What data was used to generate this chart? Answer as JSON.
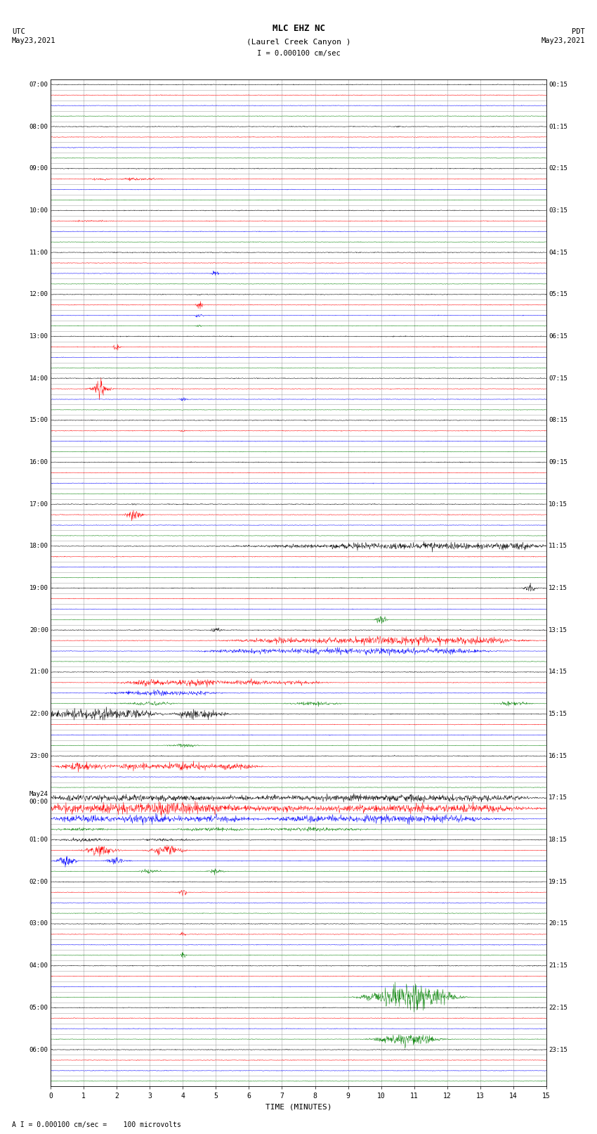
{
  "title_line1": "MLC EHZ NC",
  "title_line2": "(Laurel Creek Canyon )",
  "scale_label": "I = 0.000100 cm/sec",
  "utc_label": "UTC\nMay23,2021",
  "pdt_label": "PDT\nMay23,2021",
  "xlabel": "TIME (MINUTES)",
  "footnote": "A I = 0.000100 cm/sec =    100 microvolts",
  "xlim": [
    0,
    15
  ],
  "xticks": [
    0,
    1,
    2,
    3,
    4,
    5,
    6,
    7,
    8,
    9,
    10,
    11,
    12,
    13,
    14,
    15
  ],
  "n_rows": 96,
  "trace_color_cycle": [
    "black",
    "red",
    "blue",
    "green"
  ],
  "bg_color": "white",
  "grid_color": "#888888",
  "grid_linewidth": 0.4,
  "figure_width": 8.5,
  "figure_height": 16.13,
  "dpi": 100,
  "utc_times": [
    "07:00",
    "",
    "",
    "",
    "08:00",
    "",
    "",
    "",
    "09:00",
    "",
    "",
    "",
    "10:00",
    "",
    "",
    "",
    "11:00",
    "",
    "",
    "",
    "12:00",
    "",
    "",
    "",
    "13:00",
    "",
    "",
    "",
    "14:00",
    "",
    "",
    "",
    "15:00",
    "",
    "",
    "",
    "16:00",
    "",
    "",
    "",
    "17:00",
    "",
    "",
    "",
    "18:00",
    "",
    "",
    "",
    "19:00",
    "",
    "",
    "",
    "20:00",
    "",
    "",
    "",
    "21:00",
    "",
    "",
    "",
    "22:00",
    "",
    "",
    "",
    "23:00",
    "",
    "",
    "",
    "May24\n00:00",
    "",
    "",
    "",
    "01:00",
    "",
    "",
    "",
    "02:00",
    "",
    "",
    "",
    "03:00",
    "",
    "",
    "",
    "04:00",
    "",
    "",
    "",
    "05:00",
    "",
    "",
    "",
    "06:00",
    "",
    "",
    ""
  ],
  "pdt_times": [
    "00:15",
    "",
    "",
    "",
    "01:15",
    "",
    "",
    "",
    "02:15",
    "",
    "",
    "",
    "03:15",
    "",
    "",
    "",
    "04:15",
    "",
    "",
    "",
    "05:15",
    "",
    "",
    "",
    "06:15",
    "",
    "",
    "",
    "07:15",
    "",
    "",
    "",
    "08:15",
    "",
    "",
    "",
    "09:15",
    "",
    "",
    "",
    "10:15",
    "",
    "",
    "",
    "11:15",
    "",
    "",
    "",
    "12:15",
    "",
    "",
    "",
    "13:15",
    "",
    "",
    "",
    "14:15",
    "",
    "",
    "",
    "15:15",
    "",
    "",
    "",
    "16:15",
    "",
    "",
    "",
    "17:15",
    "",
    "",
    "",
    "18:15",
    "",
    "",
    "",
    "19:15",
    "",
    "",
    "",
    "20:15",
    "",
    "",
    "",
    "21:15",
    "",
    "",
    "",
    "22:15",
    "",
    "",
    "",
    "23:15",
    "",
    "",
    ""
  ]
}
